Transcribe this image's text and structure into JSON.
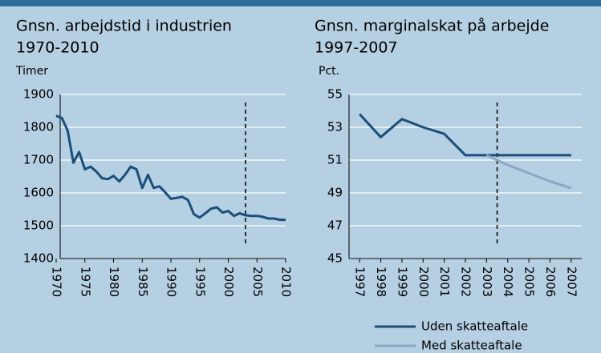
{
  "chart_data": [
    {
      "type": "line",
      "title": "Gnsn. arbejdstid i industrien",
      "subtitle": "1970-2010",
      "ylabel": "Timer",
      "x": [
        1970,
        1971,
        1972,
        1973,
        1974,
        1975,
        1976,
        1977,
        1978,
        1979,
        1980,
        1981,
        1982,
        1983,
        1984,
        1985,
        1986,
        1987,
        1988,
        1989,
        1990,
        1991,
        1992,
        1993,
        1994,
        1995,
        1996,
        1997,
        1998,
        1999,
        2000,
        2001,
        2002,
        2003,
        2004,
        2005,
        2006,
        2007,
        2008,
        2009,
        2010
      ],
      "series": [
        {
          "color": "#1b4f7b",
          "values": [
            1835,
            1828,
            1790,
            1692,
            1725,
            1672,
            1680,
            1665,
            1645,
            1642,
            1652,
            1635,
            1655,
            1680,
            1672,
            1615,
            1655,
            1615,
            1620,
            1602,
            1582,
            1585,
            1588,
            1578,
            1535,
            1525,
            1538,
            1552,
            1556,
            1540,
            1545,
            1530,
            1538,
            1532,
            1530,
            1530,
            1527,
            1522,
            1522,
            1518,
            1518
          ]
        }
      ],
      "xlim": [
        1970,
        2010
      ],
      "xticks": [
        1970,
        1975,
        1980,
        1985,
        1990,
        1995,
        2000,
        2005,
        2010
      ],
      "ylim": [
        1400,
        1900
      ],
      "yticks": [
        1400,
        1500,
        1600,
        1700,
        1800,
        1900
      ],
      "grid": true,
      "vline": 2003
    },
    {
      "type": "line",
      "title": "Gnsn. marginalskat på arbejde",
      "subtitle": "1997-2007",
      "ylabel": "Pct.",
      "x": [
        1997,
        1998,
        1999,
        2000,
        2001,
        2002,
        2003,
        2004,
        2005,
        2006,
        2007
      ],
      "series": [
        {
          "name": "Uden skatteaftale",
          "color": "#1b4f7b",
          "values": [
            53.8,
            52.4,
            53.5,
            53.0,
            52.6,
            51.3,
            51.3,
            51.3,
            51.3,
            51.3,
            51.3
          ]
        },
        {
          "name": "Med skatteaftale",
          "color": "#8ea6c6",
          "values": [
            null,
            null,
            null,
            null,
            null,
            null,
            51.3,
            50.7,
            50.2,
            49.7,
            49.3
          ]
        }
      ],
      "xlim": [
        1996.5,
        2007.5
      ],
      "xticks": [
        1997,
        1998,
        1999,
        2000,
        2001,
        2002,
        2003,
        2004,
        2005,
        2006,
        2007
      ],
      "ylim": [
        45,
        55
      ],
      "yticks": [
        45,
        47,
        49,
        51,
        53,
        55
      ],
      "grid": true,
      "vline": 2003.5
    }
  ]
}
